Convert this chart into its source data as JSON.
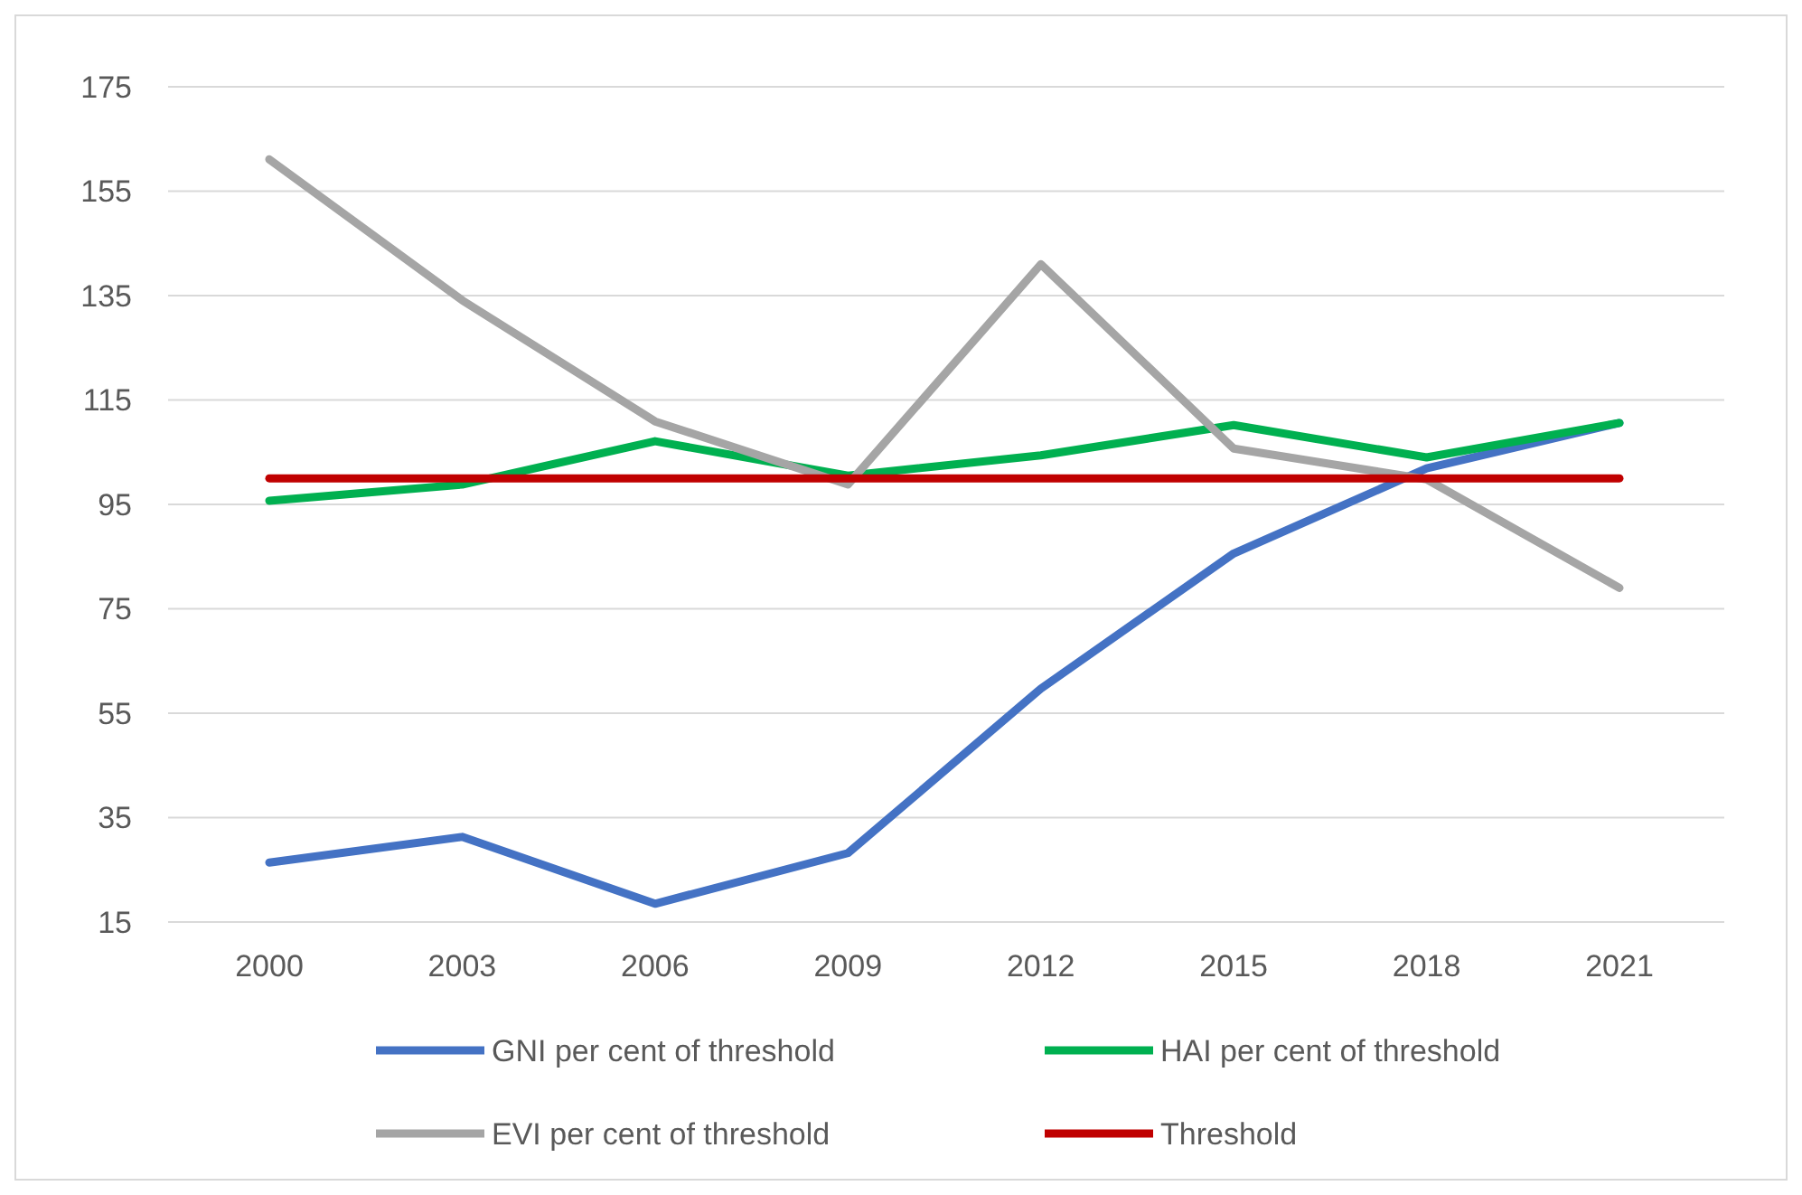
{
  "chart_data": {
    "type": "line",
    "categories": [
      "2000",
      "2003",
      "2006",
      "2009",
      "2012",
      "2015",
      "2018",
      "2021"
    ],
    "series": [
      {
        "name": "GNI per cent of threshold",
        "color": "#4472c4",
        "values": [
          26.4,
          31.3,
          18.5,
          28.2,
          59.7,
          85.6,
          101.9,
          110.6
        ]
      },
      {
        "name": "HAI per cent of threshold",
        "color": "#00b050",
        "values": [
          95.7,
          98.8,
          107.1,
          100.5,
          104.4,
          110.2,
          104,
          110.6
        ]
      },
      {
        "name": "EVI per cent of threshold",
        "color": "#a5a5a5",
        "values": [
          161.1,
          134.1,
          110.9,
          98.8,
          141,
          105.7,
          99.8,
          79
        ]
      },
      {
        "name": "Threshold",
        "color": "#c00000",
        "values": [
          100,
          100,
          100,
          100,
          100,
          100,
          100,
          100
        ]
      }
    ],
    "ylim": [
      15,
      175
    ],
    "yticks": [
      15,
      35,
      55,
      75,
      95,
      115,
      135,
      155,
      175
    ],
    "grid": "y",
    "legend": "bottom",
    "marker": "none",
    "line_style": "solid"
  }
}
